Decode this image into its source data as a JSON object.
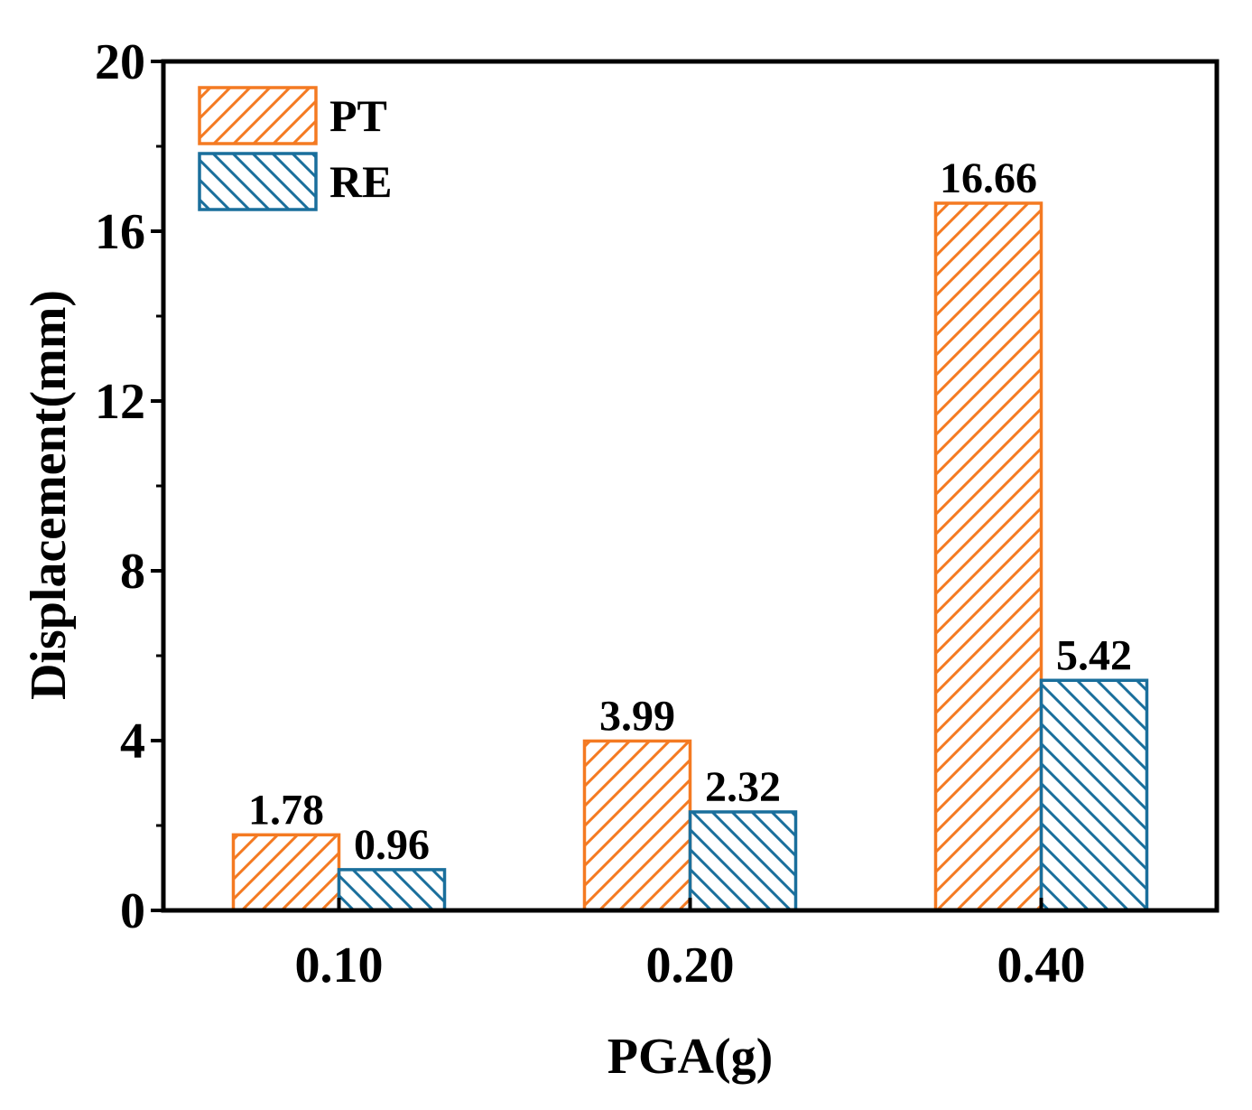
{
  "chart_data": {
    "type": "bar",
    "title": "",
    "xlabel": "PGA(g)",
    "ylabel": "Displacement(mm)",
    "categories": [
      "0.10",
      "0.20",
      "0.40"
    ],
    "ylim": [
      0,
      20
    ],
    "yticks": [
      0,
      4,
      8,
      12,
      16,
      20
    ],
    "ytick_labels": [
      "0",
      "4",
      "8",
      "12",
      "16",
      "20"
    ],
    "grid": false,
    "legend_position": "top-left",
    "series": [
      {
        "name": "PT",
        "color": "#F47A22",
        "hatch": "forward-diagonal",
        "values": [
          1.78,
          3.99,
          16.66
        ],
        "labels": [
          "1.78",
          "3.99",
          "16.66"
        ]
      },
      {
        "name": "RE",
        "color": "#1A6F9C",
        "hatch": "back-diagonal",
        "values": [
          0.96,
          2.32,
          5.42
        ],
        "labels": [
          "0.96",
          "2.32",
          "5.42"
        ]
      }
    ]
  }
}
